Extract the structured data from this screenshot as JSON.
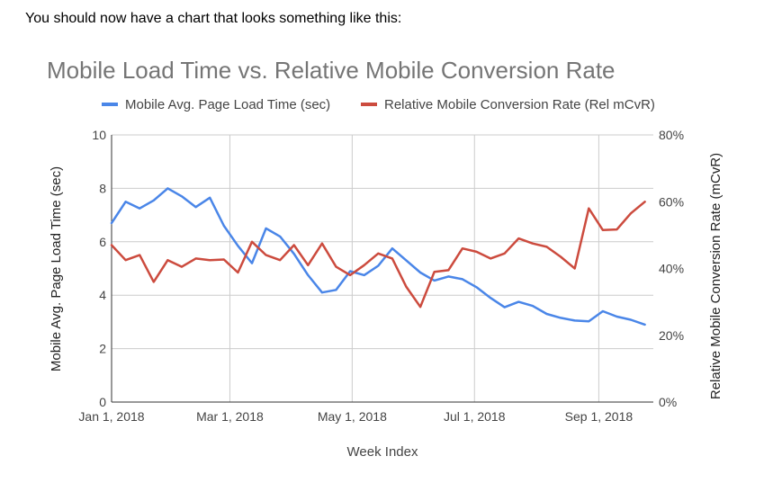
{
  "intro_text": "You should now have a chart that looks something like this:",
  "chart_data": {
    "type": "line",
    "title": "Mobile Load Time vs. Relative Mobile Conversion Rate",
    "xlabel": "Week Index",
    "ylabel": "Mobile Avg. Page Load Time (sec)",
    "y2label": "Relative Mobile Conversion Rate (mCvR)",
    "x_tick_labels": [
      "Jan 1, 2018",
      "Mar 1, 2018",
      "May 1, 2018",
      "Jul 1, 2018",
      "Sep 1, 2018"
    ],
    "x_tick_weeks": [
      0,
      8.4286,
      17.1429,
      25.8571,
      34.7143
    ],
    "xlim": [
      0,
      38.6
    ],
    "ylim": [
      0,
      10
    ],
    "y_ticks": [
      0,
      2,
      4,
      6,
      8,
      10
    ],
    "y_tick_labels": [
      "0",
      "2",
      "4",
      "6",
      "8",
      "10"
    ],
    "y2lim": [
      0,
      80
    ],
    "y2_ticks": [
      0,
      20,
      40,
      60,
      80
    ],
    "y2_tick_labels": [
      "0%",
      "20%",
      "40%",
      "60%",
      "80%"
    ],
    "legend_position": "top",
    "colors": {
      "blue": "#4a86e8",
      "red": "#cc4b3e",
      "grid": "#cccccc",
      "axis": "#333333",
      "title": "#757575",
      "text": "#444444"
    },
    "series": [
      {
        "name": "Mobile Avg. Page Load Time (sec)",
        "axis": "left",
        "color": "#4a86e8",
        "x": [
          0,
          1,
          2,
          3,
          4,
          5,
          6,
          7,
          8,
          9,
          10,
          11,
          12,
          13,
          14,
          15,
          16,
          17,
          18,
          19,
          20,
          21,
          22,
          23,
          24,
          25,
          26,
          27,
          28,
          29,
          30,
          31,
          32,
          33,
          34,
          35,
          36,
          37,
          38
        ],
        "values": [
          6.7,
          7.5,
          7.25,
          7.55,
          8.0,
          7.7,
          7.3,
          7.65,
          6.6,
          5.85,
          5.2,
          6.5,
          6.2,
          5.55,
          4.75,
          4.1,
          4.2,
          4.9,
          4.75,
          5.1,
          5.75,
          5.3,
          4.85,
          4.55,
          4.7,
          4.6,
          4.3,
          3.9,
          3.55,
          3.75,
          3.6,
          3.3,
          3.15,
          3.05,
          3.02,
          3.4,
          3.2,
          3.08,
          2.9
        ]
      },
      {
        "name": "Relative Mobile Conversion Rate (Rel mCvR)",
        "axis": "right",
        "color": "#cc4b3e",
        "x": [
          0,
          1,
          2,
          3,
          4,
          5,
          6,
          7,
          8,
          9,
          10,
          11,
          12,
          13,
          14,
          15,
          16,
          17,
          18,
          19,
          20,
          21,
          22,
          23,
          24,
          25,
          26,
          27,
          28,
          29,
          30,
          31,
          32,
          33,
          34,
          35,
          36,
          37,
          38
        ],
        "values": [
          47,
          42.5,
          44,
          36,
          42.5,
          40.5,
          43,
          42.5,
          42.7,
          38.8,
          48,
          44,
          42.5,
          47,
          41,
          47.5,
          40.5,
          38,
          41,
          44.5,
          43,
          34.5,
          28.5,
          39,
          39.5,
          46,
          45,
          43,
          44.5,
          49,
          47.5,
          46.5,
          43.5,
          40,
          58,
          51.5,
          51.7,
          56.5,
          60
        ]
      }
    ]
  }
}
